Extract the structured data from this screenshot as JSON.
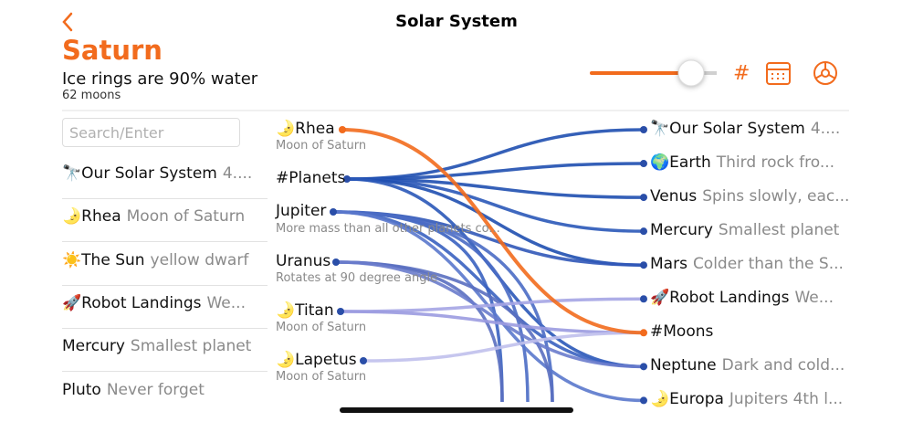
{
  "header": {
    "title": "Solar System"
  },
  "note": {
    "title": "Saturn",
    "subtitle": "Ice rings are 90% water",
    "detail": "62 moons"
  },
  "toolbar": {
    "tag": "#"
  },
  "search": {
    "placeholder": "Search/Enter"
  },
  "list": [
    {
      "icon": "🔭",
      "name": "Our Solar System",
      "detail": "4...."
    },
    {
      "icon": "🌛",
      "name": "Rhea",
      "detail": "Moon of Saturn"
    },
    {
      "icon": "☀️",
      "name": "The Sun",
      "detail": "yellow dwarf"
    },
    {
      "icon": "🚀",
      "name": "Robot Landings",
      "detail": "We..."
    },
    {
      "name": "Mercury",
      "detail": "Smallest planet"
    },
    {
      "name": "Pluto",
      "detail": "Never forget"
    }
  ],
  "links_from": [
    {
      "icon": "🌛",
      "name": "Rhea",
      "detail": "Moon of Saturn"
    },
    {
      "name": "#Planets"
    },
    {
      "name": "Jupiter",
      "detail": "More mass than all other planets co..."
    },
    {
      "name": "Uranus",
      "detail": "Rotates at 90 degree angle"
    },
    {
      "icon": "🌛",
      "name": "Titan",
      "detail": "Moon of Saturn"
    },
    {
      "icon": "🌛",
      "name": "Lapetus",
      "detail": "Moon of Saturn"
    }
  ],
  "links_to": [
    {
      "icon": "🔭",
      "name": "Our Solar System",
      "detail": "4...."
    },
    {
      "icon": "🌍",
      "name": "Earth",
      "detail": "Third rock fro..."
    },
    {
      "name": "Venus",
      "detail": "Spins slowly, eac..."
    },
    {
      "name": "Mercury",
      "detail": "Smallest planet"
    },
    {
      "name": "Mars",
      "detail": "Colder than the S..."
    },
    {
      "icon": "🚀",
      "name": "Robot Landings",
      "detail": "We..."
    },
    {
      "name": "#Moons"
    },
    {
      "name": "Neptune",
      "detail": "Dark and cold..."
    },
    {
      "icon": "🌛",
      "name": "Europa",
      "detail": "Jupiters 4th l..."
    }
  ]
}
